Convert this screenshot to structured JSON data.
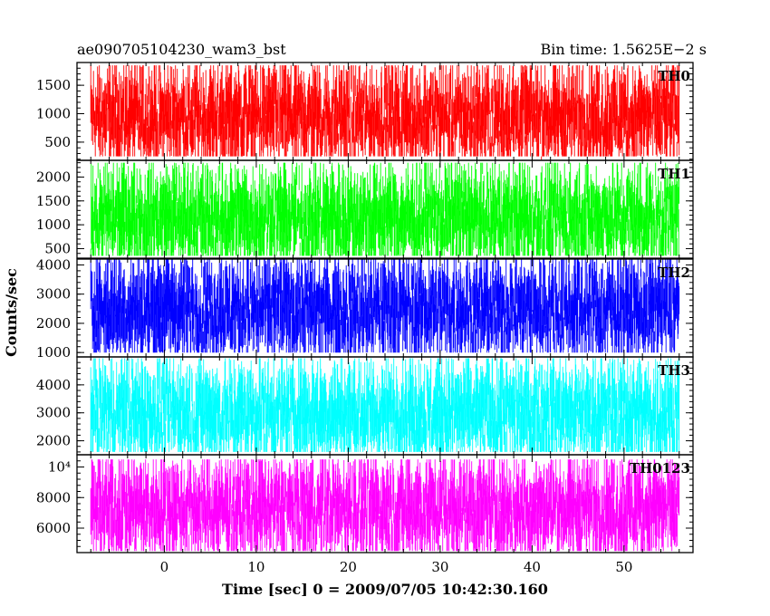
{
  "header": {
    "left_title": "ae090705104230_wam3_bst",
    "right_title": "Bin time: 1.5625E−2 s"
  },
  "chart_data": {
    "type": "line",
    "xlabel": "Time [sec] 0 = 2009/07/05 10:42:30.160",
    "ylabel": "Counts/sec",
    "xlim": [
      -9.5,
      57.5
    ],
    "data_x_range": [
      -8,
      56
    ],
    "bin_time_s": 0.015625,
    "x_ticks": [
      0,
      10,
      20,
      30,
      40,
      50
    ],
    "x_tick_labels": [
      "0",
      "10",
      "20",
      "30",
      "40",
      "50"
    ],
    "panels": [
      {
        "label": "TH0",
        "color": "#ff0000",
        "ylim": [
          180,
          1900
        ],
        "y_ticks": [
          500,
          1000,
          1500
        ],
        "y_tick_labels": [
          "500",
          "1000",
          "1500"
        ],
        "mean": 950,
        "upper_envelope": 1850,
        "lower_envelope": 250
      },
      {
        "label": "TH1",
        "color": "#00ff00",
        "ylim": [
          300,
          2350
        ],
        "y_ticks": [
          500,
          1000,
          1500,
          2000
        ],
        "y_tick_labels": [
          "500",
          "1000",
          "1500",
          "2000"
        ],
        "mean": 1150,
        "upper_envelope": 2300,
        "lower_envelope": 350
      },
      {
        "label": "TH2",
        "color": "#0000ff",
        "ylim": [
          850,
          4200
        ],
        "y_ticks": [
          1000,
          2000,
          3000,
          4000
        ],
        "y_tick_labels": [
          "1000",
          "2000",
          "3000",
          "4000"
        ],
        "mean": 2500,
        "upper_envelope": 4200,
        "lower_envelope": 1000
      },
      {
        "label": "TH3",
        "color": "#00ffff",
        "ylim": [
          1500,
          5000
        ],
        "y_ticks": [
          2000,
          3000,
          4000
        ],
        "y_tick_labels": [
          "2000",
          "3000",
          "4000"
        ],
        "mean": 3000,
        "upper_envelope": 4950,
        "lower_envelope": 1600
      },
      {
        "label": "TH0123",
        "color": "#ff00ff",
        "ylim": [
          4400,
          10800
        ],
        "y_ticks": [
          6000,
          8000,
          10000
        ],
        "y_tick_labels": [
          "6000",
          "8000",
          "10⁴"
        ],
        "mean": 7300,
        "upper_envelope": 10500,
        "lower_envelope": 4500
      }
    ]
  }
}
